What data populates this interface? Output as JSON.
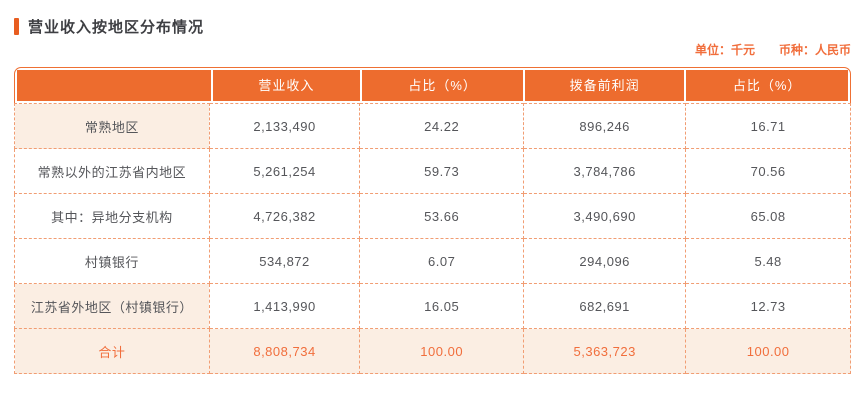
{
  "page": {
    "title": "营业收入按地区分布情况",
    "unit_label": "单位：千元",
    "currency_label": "币种：人民币"
  },
  "table": {
    "headers": [
      "",
      "营业收入",
      "占比（%）",
      "拨备前利润",
      "占比（%）"
    ],
    "rows": [
      {
        "label": "常熟地区",
        "revenue": "2,133,490",
        "revenue_pct": "24.22",
        "ppop": "896,246",
        "ppop_pct": "16.71",
        "highlight": true
      },
      {
        "label": "常熟以外的江苏省内地区",
        "revenue": "5,261,254",
        "revenue_pct": "59.73",
        "ppop": "3,784,786",
        "ppop_pct": "70.56",
        "highlight": false
      },
      {
        "label": "其中：异地分支机构",
        "revenue": "4,726,382",
        "revenue_pct": "53.66",
        "ppop": "3,490,690",
        "ppop_pct": "65.08",
        "highlight": false
      },
      {
        "label": "村镇银行",
        "revenue": "534,872",
        "revenue_pct": "6.07",
        "ppop": "294,096",
        "ppop_pct": "5.48",
        "highlight": false
      },
      {
        "label": "江苏省外地区（村镇银行）",
        "revenue": "1,413,990",
        "revenue_pct": "16.05",
        "ppop": "682,691",
        "ppop_pct": "12.73",
        "highlight": true
      }
    ],
    "total_row": {
      "label": "合计",
      "revenue": "8,808,734",
      "revenue_pct": "100.00",
      "ppop": "5,363,723",
      "ppop_pct": "100.00"
    }
  },
  "colors": {
    "accent_orange": "#ed6c2e",
    "title_bar_orange": "#e85d20",
    "dashed_border": "#f19d73",
    "peach_bg": "#fbeee3",
    "orange_text": "#f16e3c",
    "body_text": "#55565a"
  }
}
